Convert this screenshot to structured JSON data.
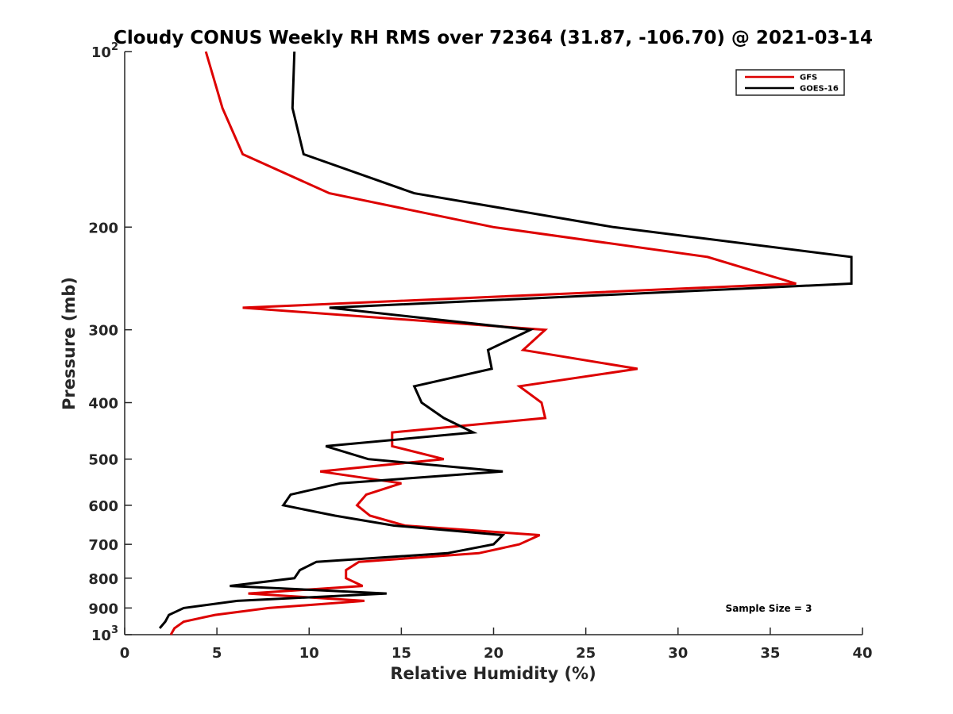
{
  "chart_data": {
    "type": "line",
    "title": "Cloudy CONUS Weekly RH RMS over 72364 (31.87, -106.70) @ 2021-03-14",
    "xlabel": "Relative Humidity (%)",
    "ylabel": "Pressure (mb)",
    "xlim": [
      0,
      40
    ],
    "ylim": [
      100,
      1000
    ],
    "y_scale": "log",
    "y_reversed": true,
    "grid": false,
    "legend_position": "top-right",
    "x_ticks": [
      "0",
      "5",
      "10",
      "15",
      "20",
      "25",
      "30",
      "35",
      "40"
    ],
    "y_ticks": [
      {
        "value": 100,
        "base": "10",
        "exp": "2"
      },
      {
        "value": 200,
        "label": "200"
      },
      {
        "value": 300,
        "label": "300"
      },
      {
        "value": 400,
        "label": "400"
      },
      {
        "value": 500,
        "label": "500"
      },
      {
        "value": 600,
        "label": "600"
      },
      {
        "value": 700,
        "label": "700"
      },
      {
        "value": 800,
        "label": "800"
      },
      {
        "value": 900,
        "label": "900"
      },
      {
        "value": 1000,
        "base": "10",
        "exp": "3"
      }
    ],
    "series": [
      {
        "name": "GFS",
        "color": "#dd0000",
        "points": [
          [
            4.4,
            100
          ],
          [
            5.3,
            125
          ],
          [
            6.4,
            150
          ],
          [
            11.1,
            175
          ],
          [
            20.0,
            200
          ],
          [
            31.6,
            225
          ],
          [
            36.4,
            250
          ],
          [
            6.4,
            275
          ],
          [
            22.8,
            300
          ],
          [
            21.6,
            325
          ],
          [
            27.8,
            350
          ],
          [
            21.4,
            375
          ],
          [
            22.6,
            400
          ],
          [
            22.8,
            425
          ],
          [
            14.5,
            450
          ],
          [
            14.5,
            475
          ],
          [
            17.3,
            500
          ],
          [
            10.6,
            525
          ],
          [
            15.0,
            550
          ],
          [
            13.1,
            575
          ],
          [
            12.6,
            600
          ],
          [
            13.3,
            625
          ],
          [
            15.2,
            650
          ],
          [
            22.5,
            675
          ],
          [
            21.4,
            700
          ],
          [
            19.2,
            725
          ],
          [
            12.7,
            750
          ],
          [
            12.0,
            775
          ],
          [
            12.0,
            800
          ],
          [
            12.9,
            825
          ],
          [
            6.7,
            850
          ],
          [
            13.0,
            875
          ],
          [
            7.8,
            900
          ],
          [
            4.9,
            925
          ],
          [
            3.2,
            950
          ],
          [
            2.7,
            975
          ],
          [
            2.5,
            1000
          ]
        ]
      },
      {
        "name": "GOES-16",
        "color": "#000000",
        "points": [
          [
            9.2,
            100
          ],
          [
            9.1,
            125
          ],
          [
            9.7,
            150
          ],
          [
            15.7,
            175
          ],
          [
            26.5,
            200
          ],
          [
            39.4,
            225
          ],
          [
            39.4,
            250
          ],
          [
            11.1,
            275
          ],
          [
            22.0,
            300
          ],
          [
            19.7,
            325
          ],
          [
            19.9,
            350
          ],
          [
            15.7,
            375
          ],
          [
            16.1,
            400
          ],
          [
            17.3,
            425
          ],
          [
            18.9,
            450
          ],
          [
            10.9,
            475
          ],
          [
            13.2,
            500
          ],
          [
            20.5,
            525
          ],
          [
            11.7,
            550
          ],
          [
            9.0,
            575
          ],
          [
            8.6,
            600
          ],
          [
            11.4,
            625
          ],
          [
            14.6,
            650
          ],
          [
            20.5,
            675
          ],
          [
            20.0,
            700
          ],
          [
            17.5,
            725
          ],
          [
            10.4,
            750
          ],
          [
            9.5,
            775
          ],
          [
            9.2,
            800
          ],
          [
            5.7,
            825
          ],
          [
            14.2,
            850
          ],
          [
            6.1,
            875
          ],
          [
            3.2,
            900
          ],
          [
            2.4,
            925
          ],
          [
            2.2,
            950
          ],
          [
            1.9,
            975
          ]
        ]
      }
    ],
    "annotation": "Sample Size = 3"
  }
}
